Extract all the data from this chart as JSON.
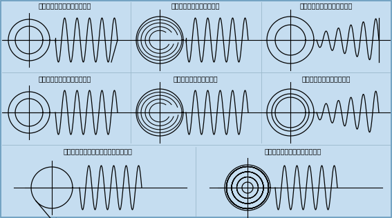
{
  "bg_color": "#c5ddf0",
  "line_color": "#000000",
  "titles": [
    "クローズドエンド（無研削）",
    "クローズドエンド（研削）",
    "クローズドエンド（テーパ）",
    "オープンドエンド（無研削）",
    "オープンエンド（研削）",
    "オープンエンド（テーパ）",
    "タンジェントテールエンド（無研削）",
    "ビッグテールエンド（無研削）"
  ],
  "font_size": 7.0,
  "lw_main": 0.9,
  "lw_cross": 0.8
}
